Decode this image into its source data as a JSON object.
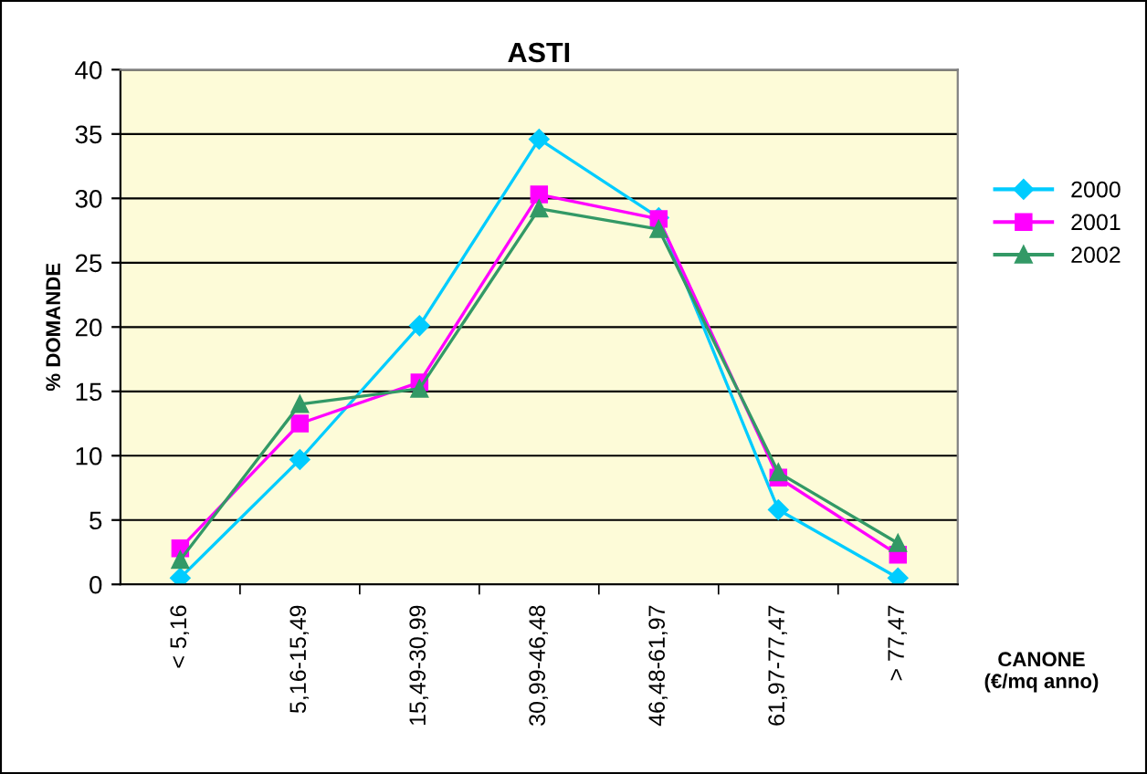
{
  "chart_data": {
    "type": "line",
    "title": "ASTI",
    "xlabel": "CANONE\n(€/mq anno)",
    "ylabel": "% DOMANDE",
    "categories": [
      "< 5,16",
      "5,16-15,49",
      "15,49-30,99",
      "30,99-46,48",
      "46,48-61,97",
      "61,97-77,47",
      "> 77,47"
    ],
    "series": [
      {
        "name": "2000",
        "color": "#00ccff",
        "marker": "diamond",
        "values": [
          0.5,
          9.7,
          20.1,
          34.6,
          28.5,
          5.8,
          0.5
        ]
      },
      {
        "name": "2001",
        "color": "#ff00ff",
        "marker": "square",
        "values": [
          2.8,
          12.5,
          15.7,
          30.3,
          28.4,
          8.3,
          2.3
        ]
      },
      {
        "name": "2002",
        "color": "#339966",
        "marker": "triangle",
        "values": [
          1.9,
          14.0,
          15.2,
          29.2,
          27.6,
          8.7,
          3.2
        ]
      }
    ],
    "ylim": [
      0,
      40
    ],
    "yticks": [
      0,
      5,
      10,
      15,
      20,
      25,
      30,
      35,
      40
    ],
    "grid": "y",
    "legend": "right"
  }
}
